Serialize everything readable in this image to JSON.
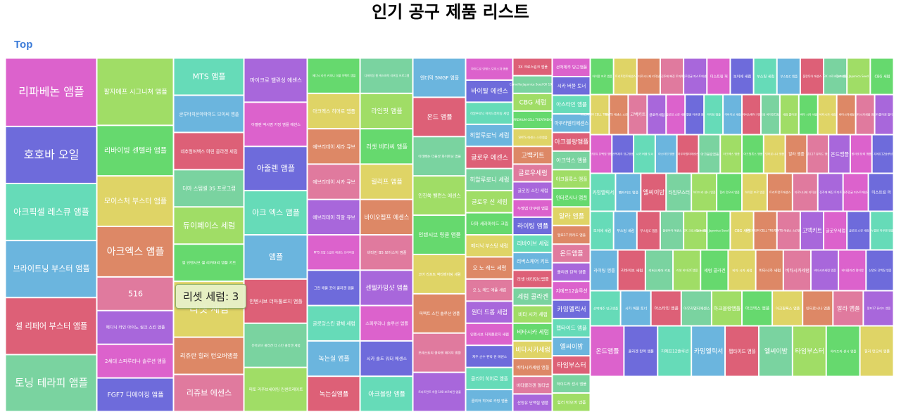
{
  "title": "인기 공구 제품 리스트",
  "breadcrumb": "Top",
  "tooltip": {
    "label": "리셋 세럼",
    "value": 3,
    "text": "리셋 세럼: 3"
  },
  "chart_data": {
    "type": "treemap",
    "columns": [
      {
        "items": [
          {
            "name": "리파베논 앰플",
            "value": 6
          },
          {
            "name": "호호바 오일",
            "value": 5
          },
          {
            "name": "아크픽셀 레스큐 앰플",
            "value": 5
          },
          {
            "name": "브라이트닝 부스터 앰플",
            "value": 5
          },
          {
            "name": "셀 리페어 부스터 앰플",
            "value": 5
          },
          {
            "name": "토닝 테라피 앰플",
            "value": 5
          }
        ]
      },
      {
        "items": [
          {
            "name": "팔지에프 시그니쳐 앰플",
            "value": 4
          },
          {
            "name": "리바이빙 센텔라 앰플",
            "value": 3
          },
          {
            "name": "모이스처 부스터 앰플",
            "value": 3
          },
          {
            "name": "아크엑스 앰플",
            "value": 3
          },
          {
            "name": "516",
            "value": 2
          },
          {
            "name": "메디닉 라인 아이노 실크 스킨 앰플",
            "value": 2
          },
          {
            "name": "2세대 스피루리나 솔루션 앰플",
            "value": 2
          },
          {
            "name": "FGF7 디에이징 앰플",
            "value": 2
          }
        ]
      },
      {
        "items": [
          {
            "name": "MTS 앰플",
            "value": 2
          },
          {
            "name": "글루타치온아마이드 브이씨 앰플",
            "value": 2
          },
          {
            "name": "네추럴허벡스 마린 콜라겐 세럼",
            "value": 2
          },
          {
            "name": "더마 스템셀 35 프로그램",
            "value": 2
          },
          {
            "name": "듀이페이스 세럼",
            "value": 2
          },
          {
            "name": "엠 인텐시브 셀 리커버리 앰플 키트",
            "value": 2
          },
          {
            "name": "리셋 세럼",
            "value": 3
          },
          {
            "name": "리쥬란 힐러 턴오버앰플",
            "value": 2
          },
          {
            "name": "리쥬브 에센스",
            "value": 2
          }
        ]
      },
      {
        "items": [
          {
            "name": "마이크로 밸런싱 에센스",
            "value": 2
          },
          {
            "name": "아젤렌 엑시멈 카밍 앰플 에센스",
            "value": 2
          },
          {
            "name": "아줄렌 앰플",
            "value": 2
          },
          {
            "name": "아크 엑스 앰플",
            "value": 2
          },
          {
            "name": "앰플",
            "value": 2
          },
          {
            "name": "인텐시브 더마톨로지 앰플",
            "value": 2
          },
          {
            "name": "유어오브 콜라겐 더 스킨 콜라겐 세럼",
            "value": 2
          },
          {
            "name": "피토 리주브네이팅 컨센트레이트",
            "value": 2
          }
        ]
      },
      {
        "items": [
          {
            "name": "메디닉 라인 커피니 더블 이펙트 앰플",
            "value": 1
          },
          {
            "name": "아크엑스 히어로 앰플",
            "value": 1
          },
          {
            "name": "에브리데이 세라 큐브",
            "value": 1
          },
          {
            "name": "에브리데이 시카 큐브",
            "value": 1
          },
          {
            "name": "에브리데이 히알 큐브",
            "value": 1
          },
          {
            "name": "MTS 모발 스칼프 에센스 프리미엄",
            "value": 1
          },
          {
            "name": "그린 애플 포어 콜라겐 앰플",
            "value": 1
          },
          {
            "name": "글로잉스킨 광채 세럼",
            "value": 1
          },
          {
            "name": "녹는실 앰플",
            "value": 1
          },
          {
            "name": "녹는실앰플",
            "value": 1
          }
        ]
      },
      {
        "items": [
          {
            "name": "디에이징 홈 케스퍼릭 리프팅 프로그램",
            "value": 1
          },
          {
            "name": "라인핏 앰플",
            "value": 1
          },
          {
            "name": "리셋 비타씨 앰플",
            "value": 1
          },
          {
            "name": "릴리프 앰플",
            "value": 1
          },
          {
            "name": "바이오펩프 에센스",
            "value": 1
          },
          {
            "name": "비타민 B5 모이스처 앰플",
            "value": 1
          },
          {
            "name": "센텔카밍샷 앰플",
            "value": 1
          },
          {
            "name": "스피루리나 솔루션 앰플",
            "value": 1
          },
          {
            "name": "시카 솔트 워터 에센스",
            "value": 1
          },
          {
            "name": "아크블랑 앰플",
            "value": 1
          }
        ]
      },
      {
        "items": [
          {
            "name": "엔더믹 5MGF 앰플",
            "value": 1
          },
          {
            "name": "온드 앰플",
            "value": 1
          },
          {
            "name": "이데베논 더블샷 화이트닝 앰플",
            "value": 1
          },
          {
            "name": "인진쑥 밸런스 에센스",
            "value": 1
          },
          {
            "name": "인텐시브 링클 앰플",
            "value": 1
          },
          {
            "name": "코어 리프트 액티베이팅 세럼",
            "value": 1
          },
          {
            "name": "퍼펙트 스킨 솔루션 앰플",
            "value": 1
          },
          {
            "name": "포레스트리 콜라겐 에이지 앰플",
            "value": 1
          },
          {
            "name": "트리트먼트 히알 100 보르피린 앰플",
            "value": 1
          }
        ]
      },
      {
        "items": [
          {
            "name": "하이드로 인텐스 모이스처 앰플",
            "value": 1
          },
          {
            "name": "바이탈 에센스",
            "value": 1
          },
          {
            "name": "히알루로닉 하이드레이팅 세럼",
            "value": 1
          },
          {
            "name": "히알루로닉 세럼",
            "value": 1
          },
          {
            "name": "글로우 에센스",
            "value": 1
          },
          {
            "name": "히알루로니 세럼",
            "value": 1
          },
          {
            "name": "글로우 선 세럼",
            "value": 1
          },
          {
            "name": "더마 세라마이드 크림",
            "value": 1
          },
          {
            "name": "메디닉 부스팅 세럼",
            "value": 1
          },
          {
            "name": "오 노 레드 세럼",
            "value": 1
          },
          {
            "name": "오 노 레드 애플 세럼",
            "value": 1
          },
          {
            "name": "원더 드롭 세럼",
            "value": 1
          },
          {
            "name": "인텐시브 더마톨로지 세럼",
            "value": 1
          },
          {
            "name": "제주 순수 판박 원 에센스",
            "value": 1
          },
          {
            "name": "클리어 히어로 앰플",
            "value": 1
          },
          {
            "name": "클리어 히어로 카밍 앰플",
            "value": 1
          }
        ]
      }
    ],
    "small_items_note": "remaining ~250 small products rendered as value-1 tiles",
    "extra_labels": [
      "3X 크로스링크 앰플",
      "Camellia Japonica Seed Oil 100%",
      "CBG 세럼",
      "PREMIUM CELL TREATMENT",
      "SMTS 에센스 스킨앰플",
      "고백키트",
      "글로우세럼",
      "글로잉 스킨 세럼",
      "누벨엠 아쿠렌 앰플",
      "라이팅 앰플",
      "리바이브 세럼",
      "리버스케어 키트",
      "리셋 비타민C앰플",
      "세럼 콜라겐",
      "비타 시카 세럼",
      "비타시카 세럼",
      "비타시카세럼",
      "비타시카세럼 앰플",
      "비타콜라겐 멀티밤",
      "산양유 단백질 앰플",
      "선먹제주 당근앰플",
      "시카 버블 토너",
      "아스타민 앰플",
      "아우라멀티에센스",
      "아크블랑앰플",
      "아크엑스 앰플",
      "아크필록스 앰플",
      "인터로시나 앰플",
      "알라 앰플",
      "알프17 뮤리드 앰플",
      "온드앰플",
      "올라겐 탄력 앰플",
      "지에프12솔루션",
      "카밍엘릭서",
      "펩타이드 앰플",
      "엘씨이밤",
      "타임부스터",
      "하이드라 센시 앰플",
      "힐러 턴오버 앰플",
      "하이알 프로 앰플",
      "트리트먼트에센스",
      "티로시나제 리덕션",
      "진주에 빠진 토마토",
      "제주민귤 퍼스트에센스",
      "미스트링 퍼",
      "보이쉐 세럼",
      "부스팅 세럼",
      "부스팅C 앰플",
      "불랑투어 에센스"
    ]
  }
}
